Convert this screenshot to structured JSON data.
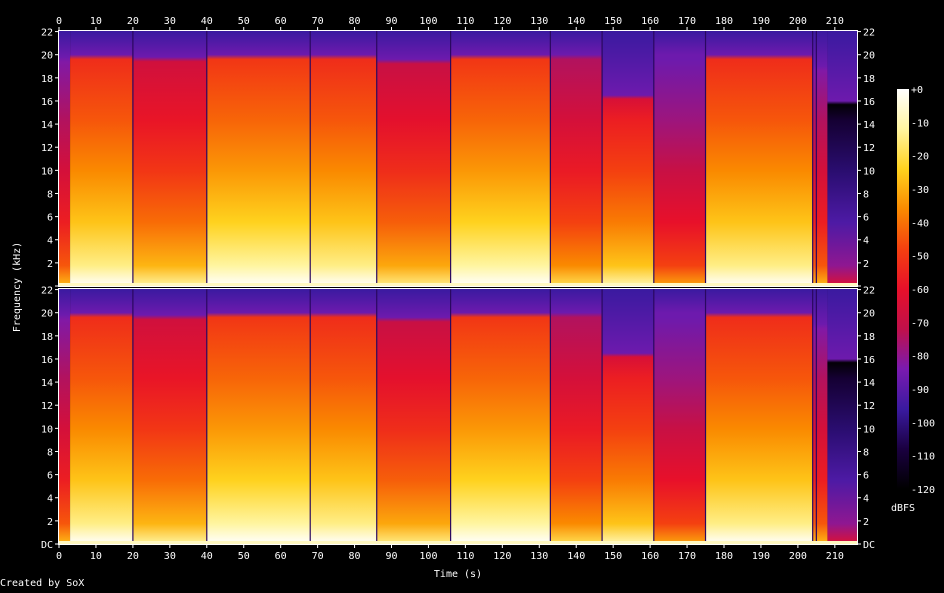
{
  "chart_data": {
    "type": "heatmap",
    "title": "",
    "xlabel": "Time (s)",
    "ylabel": "Frequency (kHz)",
    "xlim": [
      0,
      216
    ],
    "ylim": [
      0,
      22.05
    ],
    "x_ticks": [
      0,
      10,
      20,
      30,
      40,
      50,
      60,
      70,
      80,
      90,
      100,
      110,
      120,
      130,
      140,
      150,
      160,
      170,
      180,
      190,
      200,
      210
    ],
    "y_ticks": [
      {
        "value": 0,
        "label": "DC"
      },
      {
        "value": 2,
        "label": "2"
      },
      {
        "value": 4,
        "label": "4"
      },
      {
        "value": 6,
        "label": "6"
      },
      {
        "value": 8,
        "label": "8"
      },
      {
        "value": 10,
        "label": "10"
      },
      {
        "value": 12,
        "label": "12"
      },
      {
        "value": 14,
        "label": "14"
      },
      {
        "value": 16,
        "label": "16"
      },
      {
        "value": 18,
        "label": "18"
      },
      {
        "value": 20,
        "label": "20"
      },
      {
        "value": 22,
        "label": "22"
      }
    ],
    "channels": 2,
    "colorbar": {
      "unit": "dBFS",
      "range": [
        -120,
        0
      ],
      "ticks": [
        "+0",
        "-10",
        "-20",
        "-30",
        "-40",
        "-50",
        "-60",
        "-70",
        "-80",
        "-90",
        "-100",
        "-110",
        "-120"
      ]
    },
    "segments": [
      {
        "t0": 0,
        "t1": 3,
        "cutoff_khz": 19.8,
        "brightness": 0.55
      },
      {
        "t0": 3,
        "t1": 20,
        "cutoff_khz": 20.0,
        "brightness": 0.8
      },
      {
        "t0": 20,
        "t1": 40,
        "cutoff_khz": 19.8,
        "brightness": 0.68
      },
      {
        "t0": 40,
        "t1": 68,
        "cutoff_khz": 20.0,
        "brightness": 0.82
      },
      {
        "t0": 68,
        "t1": 86,
        "cutoff_khz": 20.0,
        "brightness": 0.8
      },
      {
        "t0": 86,
        "t1": 106,
        "cutoff_khz": 19.6,
        "brightness": 0.66
      },
      {
        "t0": 106,
        "t1": 133,
        "cutoff_khz": 20.0,
        "brightness": 0.82
      },
      {
        "t0": 133,
        "t1": 147,
        "cutoff_khz": 20.0,
        "brightness": 0.62
      },
      {
        "t0": 147,
        "t1": 161,
        "cutoff_khz": 16.5,
        "brightness": 0.7
      },
      {
        "t0": 161,
        "t1": 175,
        "cutoff_khz": 20.0,
        "brightness": 0.52
      },
      {
        "t0": 175,
        "t1": 204,
        "cutoff_khz": 20.0,
        "brightness": 0.8
      },
      {
        "t0": 204,
        "t1": 208,
        "cutoff_khz": 19.0,
        "brightness": 0.55
      },
      {
        "t0": 208,
        "t1": 216,
        "cutoff_khz": 16.0,
        "brightness": 0.25
      }
    ],
    "dips": [
      20,
      40,
      68,
      86,
      106,
      133,
      147,
      161,
      175,
      204,
      205
    ]
  },
  "credit": "Created by SoX",
  "colors": {
    "background": "#000000",
    "text": "#ffffff",
    "palette": [
      "#000000",
      "#1a0040",
      "#3a1aa0",
      "#7a1ab0",
      "#c0104a",
      "#e8102a",
      "#f44010",
      "#fa8a00",
      "#ffd21e",
      "#fff5a0",
      "#ffffff"
    ]
  }
}
